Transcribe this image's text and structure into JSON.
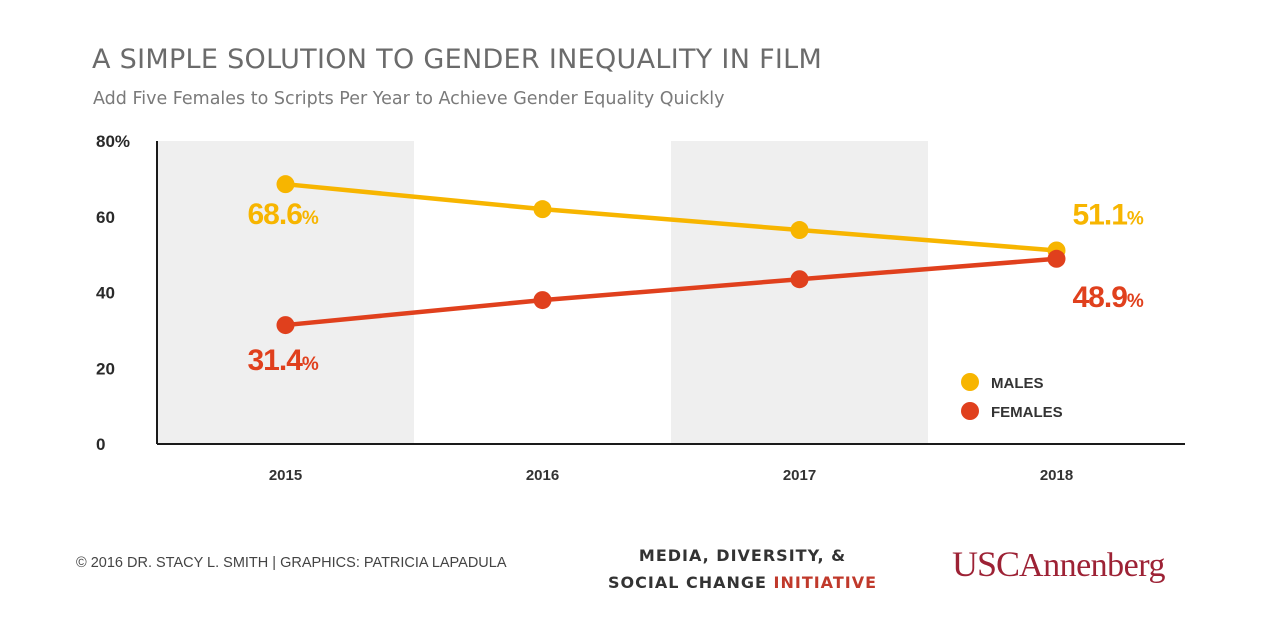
{
  "chart_data": {
    "type": "line",
    "title": "A SIMPLE SOLUTION TO GENDER INEQUALITY IN FILM",
    "subtitle": "Add Five Females to Scripts Per Year to Achieve Gender Equality Quickly",
    "categories": [
      "2015",
      "2016",
      "2017",
      "2018"
    ],
    "series": [
      {
        "name": "MALES",
        "color": "#f7b500",
        "values": [
          68.6,
          62,
          56.5,
          51.1
        ]
      },
      {
        "name": "FEMALES",
        "color": "#e0401d",
        "values": [
          31.4,
          38,
          43.5,
          48.9
        ]
      }
    ],
    "data_labels": [
      {
        "series": "MALES",
        "index": 0,
        "number": "68.6",
        "unit": "%"
      },
      {
        "series": "MALES",
        "index": 3,
        "number": "51.1",
        "unit": "%"
      },
      {
        "series": "FEMALES",
        "index": 0,
        "number": "31.4",
        "unit": "%"
      },
      {
        "series": "FEMALES",
        "index": 3,
        "number": "48.9",
        "unit": "%"
      }
    ],
    "yticks": [
      "0",
      "20",
      "40",
      "60",
      "80%"
    ],
    "ylim": [
      0,
      80
    ],
    "xlabel": "",
    "ylabel": "",
    "legend_position": "right",
    "shaded_bands": [
      "2015",
      "2017"
    ],
    "band_color": "#efefef",
    "grid": false
  },
  "footer": {
    "credit": "© 2016 DR. STACY L. SMITH | GRAPHICS: PATRICIA LAPADULA",
    "initiative_line1": "MEDIA, DIVERSITY, &",
    "initiative_line2_prefix": "SOCIAL CHANGE ",
    "initiative_line2_accent": "INITIATIVE",
    "logo_usc": "USC",
    "logo_annenberg": "Annenberg"
  }
}
